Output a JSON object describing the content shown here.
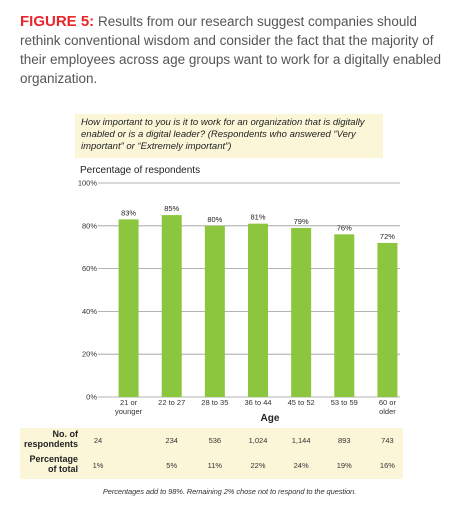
{
  "caption": {
    "label": "FIGURE 5:",
    "text": " Results from our research suggest companies should rethink conventional wisdom and consider the fact that the majority of their employees across age groups want to work for a digitally enabled organization."
  },
  "question": "How important to you is it to work for an organization that is digitally enabled or is a digital leader? (Respondents who answered “Very important” or “Extremely important”)",
  "footnote": "Percentages add to 98%. Remaining 2% chose not to respond to the question.",
  "colors": {
    "bar": "#8cc63f",
    "band": "#fbf6d8",
    "accent": "#e8262c"
  },
  "chart_data": {
    "type": "bar",
    "ylabel": "Percentage of respondents",
    "xlabel": "Age",
    "ylim": [
      0,
      100
    ],
    "yticks": [
      "0%",
      "20%",
      "40%",
      "60%",
      "80%",
      "100%"
    ],
    "grid": true,
    "categories": [
      [
        "21 or",
        "younger"
      ],
      [
        "22 to 27"
      ],
      [
        "28 to 35"
      ],
      [
        "36 to 44"
      ],
      [
        "45 to 52"
      ],
      [
        "53 to 59"
      ],
      [
        "60 or",
        "older"
      ]
    ],
    "values": [
      83,
      85,
      80,
      81,
      79,
      76,
      72
    ],
    "value_labels": [
      "83%",
      "85%",
      "80%",
      "81%",
      "79%",
      "76%",
      "72%"
    ],
    "table": {
      "rows": [
        {
          "label": [
            "No. of",
            "respondents"
          ],
          "values": [
            "24",
            "234",
            "536",
            "1,024",
            "1,144",
            "893",
            "743"
          ]
        },
        {
          "label": [
            "Percentage",
            "of total"
          ],
          "values": [
            "1%",
            "5%",
            "11%",
            "22%",
            "24%",
            "19%",
            "16%"
          ]
        }
      ]
    }
  }
}
